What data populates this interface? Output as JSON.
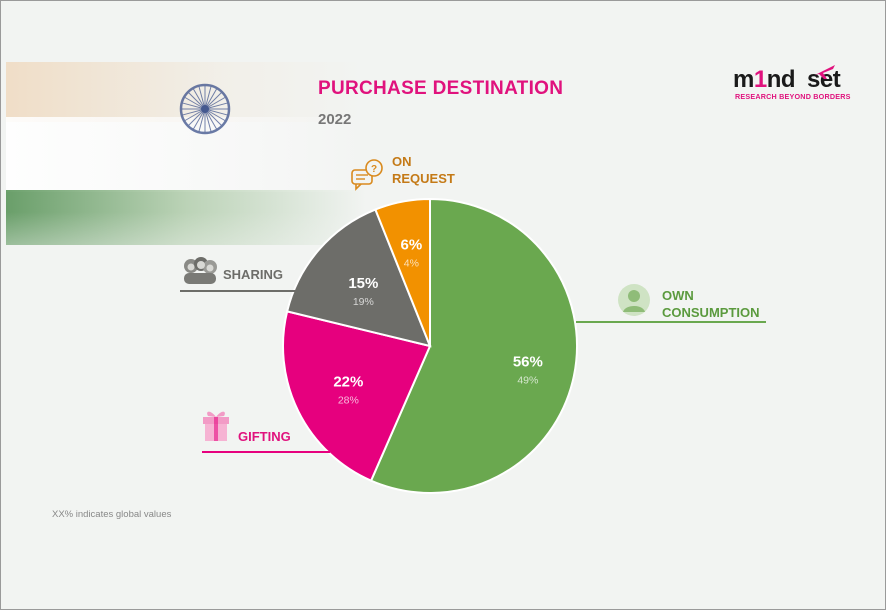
{
  "header": {
    "title": "PURCHASE DESTINATION",
    "subtitle": "2022"
  },
  "logo": {
    "left_text": "m",
    "accent_text": "1",
    "right_text": "nd",
    "tail_text": "set",
    "tagline": "RESEARCH BEYOND BORDERS"
  },
  "footnote": "XX% indicates global values",
  "colors": {
    "own_consumption": "#6aa84f",
    "gifting": "#e6007e",
    "sharing": "#6d6d69",
    "on_request": "#f29100",
    "title": "#e0127d"
  },
  "chart_data": {
    "type": "pie",
    "title": "PURCHASE DESTINATION",
    "subtitle": "2022",
    "series": [
      {
        "name": "OWN CONSUMPTION",
        "value": 56,
        "label": "56%",
        "global": 49,
        "global_label": "49%",
        "color": "#6aa84f",
        "icon": "person-icon"
      },
      {
        "name": "GIFTING",
        "value": 22,
        "label": "22%",
        "global": 28,
        "global_label": "28%",
        "color": "#e6007e",
        "icon": "gift-icon"
      },
      {
        "name": "SHARING",
        "value": 15,
        "label": "15%",
        "global": 19,
        "global_label": "19%",
        "color": "#6d6d69",
        "icon": "group-icon"
      },
      {
        "name": "ON REQUEST",
        "value": 6,
        "label": "6%",
        "global": 4,
        "global_label": "4%",
        "color": "#f29100",
        "icon": "speech-bubble-icon"
      }
    ],
    "start_angle": "top",
    "direction": "clockwise"
  }
}
